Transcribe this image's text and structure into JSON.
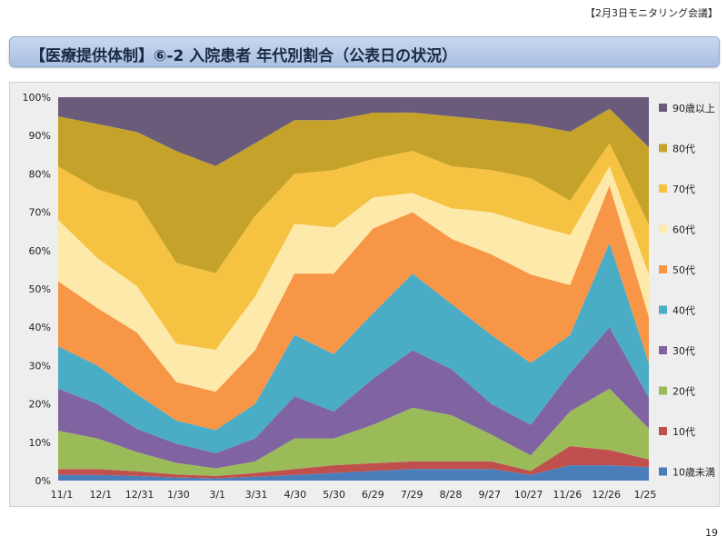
{
  "meeting_tag": "【2月3日モニタリング会議】",
  "slide_title": "【医療提供体制】⑥-2 入院患者 年代別割合（公表日の状況）",
  "page_number": "19",
  "chart_data": {
    "type": "area",
    "stacked": true,
    "normalized_percent": true,
    "y_ticks": [
      "0%",
      "10%",
      "20%",
      "30%",
      "40%",
      "50%",
      "60%",
      "70%",
      "80%",
      "90%",
      "100%"
    ],
    "ylim": [
      0,
      100
    ],
    "x_tick_labels": [
      "11/1",
      "12/1",
      "12/31",
      "1/30",
      "3/1",
      "3/31",
      "4/30",
      "5/30",
      "6/29",
      "7/29",
      "8/28",
      "9/27",
      "10/27",
      "11/26",
      "12/26",
      "1/25"
    ],
    "legend_position": "right",
    "x": [
      "11/1",
      "12/1",
      "12/31",
      "1/30",
      "3/1",
      "3/31",
      "4/30",
      "5/30",
      "6/29",
      "7/29",
      "8/28",
      "9/27",
      "10/27",
      "11/26",
      "12/26",
      "1/25"
    ],
    "series": [
      {
        "name": "10歳未満",
        "color": "#4a7ebb",
        "values": [
          1.5,
          1.5,
          1.2,
          0.8,
          0.6,
          1,
          1.5,
          2,
          2.5,
          3,
          3,
          3,
          1.5,
          4,
          4,
          3.5
        ]
      },
      {
        "name": "10代",
        "color": "#c0504d",
        "values": [
          1.5,
          1.5,
          1.2,
          0.8,
          0.6,
          1,
          1.5,
          2,
          2,
          2,
          2,
          2,
          1,
          5,
          4,
          2
        ]
      },
      {
        "name": "20代",
        "color": "#9bbb59",
        "values": [
          10,
          8,
          5,
          3,
          2,
          3,
          8,
          7,
          10,
          14,
          12,
          7,
          4,
          9,
          16,
          8
        ]
      },
      {
        "name": "30代",
        "color": "#8064a2",
        "values": [
          11,
          9,
          6,
          5,
          4,
          6,
          11,
          7,
          12,
          15,
          12,
          8,
          8,
          10,
          16,
          8
        ]
      },
      {
        "name": "40代",
        "color": "#4bacc6",
        "values": [
          11,
          10,
          9,
          6,
          6,
          9,
          16,
          15,
          17,
          20,
          17,
          18,
          16,
          10,
          22,
          9
        ]
      },
      {
        "name": "50代",
        "color": "#f79646",
        "values": [
          17,
          15,
          16,
          10,
          10,
          14,
          16,
          21,
          22,
          16,
          17,
          21,
          23,
          13,
          15,
          12
        ]
      },
      {
        "name": "60代",
        "color": "#fde9a9",
        "values": [
          16,
          13,
          12,
          10,
          11,
          14,
          13,
          12,
          8,
          5,
          8,
          11,
          13,
          13,
          5,
          11
        ]
      },
      {
        "name": "70代",
        "color": "#f5c242",
        "values": [
          14,
          18,
          22,
          21,
          20,
          21,
          13,
          15,
          10,
          11,
          11,
          11,
          12,
          9,
          6,
          13
        ]
      },
      {
        "name": "80代",
        "color": "#c5a22a",
        "values": [
          13,
          17,
          18,
          29,
          28,
          19,
          14,
          13,
          12,
          10,
          13,
          13,
          14,
          18,
          9,
          20
        ]
      },
      {
        "name": "90歳以上",
        "color": "#6a5b7b",
        "values": [
          5,
          7,
          9,
          14,
          18,
          12,
          6,
          6,
          4,
          4,
          5,
          6,
          7,
          9,
          3,
          13
        ]
      }
    ]
  }
}
